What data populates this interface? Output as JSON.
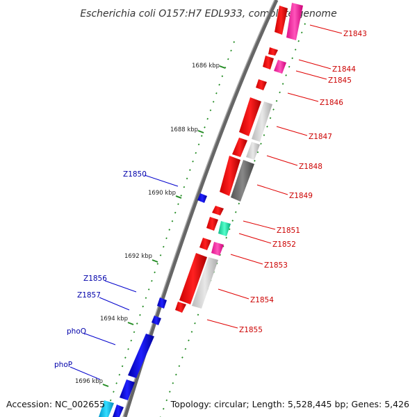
{
  "title": "Escherichia coli O157:H7 EDL933, complete genome",
  "footer": {
    "accession": "Accession: NC_002655",
    "topology": "Topology: circular; Length: 5,528,445 bp; Genes: 5,426"
  },
  "ticks": [
    "1686 kbp",
    "1688 kbp",
    "1690 kbp",
    "1692 kbp",
    "1694 kbp",
    "1696 kbp"
  ],
  "genes_right": [
    "Z1843",
    "Z1844",
    "Z1845",
    "Z1846",
    "Z1847",
    "Z1848",
    "Z1849",
    "Z1851",
    "Z1852",
    "Z1853",
    "Z1854",
    "Z1855"
  ],
  "genes_left": [
    "Z1850",
    "Z1856",
    "Z1857",
    "phoQ",
    "phoP"
  ],
  "colors": {
    "forward_cds": "#ff0000",
    "reverse_cds": "#0000ff",
    "backbone": "#888888",
    "gc_skew_marks": "#228b22",
    "label_right": "#cc0000",
    "label_left": "#0000aa",
    "similarity_high": "#999999",
    "similarity_low": "#cccccc",
    "magenta_feature": "#ff33aa",
    "teal_feature": "#33ddaa"
  }
}
